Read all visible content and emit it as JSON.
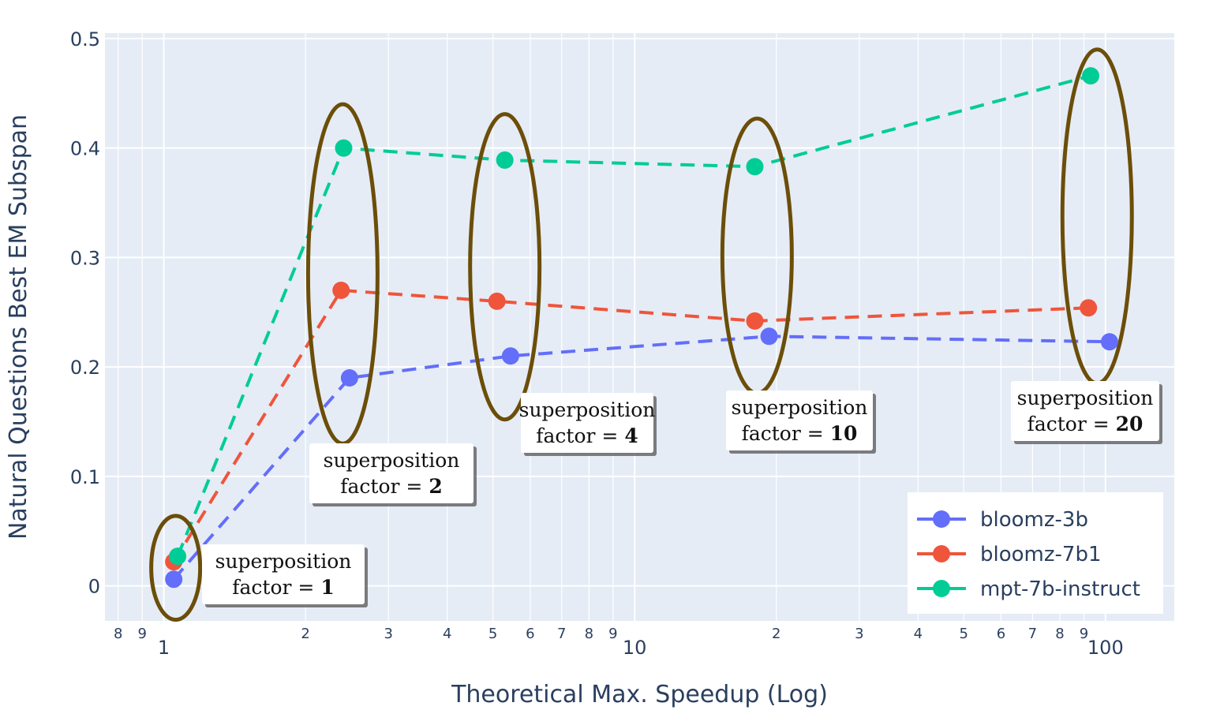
{
  "chart_data": {
    "type": "line",
    "xlabel": "Theoretical Max. Speedup (Log)",
    "ylabel": "Natural Questions Best EM Subspan",
    "x_scale": "log",
    "xlim": [
      0.75,
      140
    ],
    "ylim": [
      -0.032,
      0.505
    ],
    "y_ticks": [
      0,
      0.1,
      0.2,
      0.3,
      0.4,
      0.5
    ],
    "y_tick_labels": [
      "0",
      "0.1",
      "0.2",
      "0.3",
      "0.4",
      "0.5"
    ],
    "x_major_ticks": [
      {
        "value": 1,
        "label": "1"
      },
      {
        "value": 10,
        "label": "10"
      },
      {
        "value": 100,
        "label": "100"
      }
    ],
    "x_minor_ticks": [
      {
        "value": 0.8,
        "label": "8"
      },
      {
        "value": 0.9,
        "label": "9"
      },
      {
        "value": 2,
        "label": "2"
      },
      {
        "value": 3,
        "label": "3"
      },
      {
        "value": 4,
        "label": "4"
      },
      {
        "value": 5,
        "label": "5"
      },
      {
        "value": 6,
        "label": "6"
      },
      {
        "value": 7,
        "label": "7"
      },
      {
        "value": 8,
        "label": "8"
      },
      {
        "value": 9,
        "label": "9"
      },
      {
        "value": 20,
        "label": "2"
      },
      {
        "value": 30,
        "label": "3"
      },
      {
        "value": 40,
        "label": "4"
      },
      {
        "value": 50,
        "label": "5"
      },
      {
        "value": 60,
        "label": "6"
      },
      {
        "value": 70,
        "label": "7"
      },
      {
        "value": 80,
        "label": "8"
      },
      {
        "value": 90,
        "label": "9"
      }
    ],
    "grid": true,
    "legend_position": "bottom-right",
    "series": [
      {
        "name": "bloomz-3b",
        "color": "#636efa",
        "x": [
          1.05,
          2.48,
          5.45,
          19.3,
          102
        ],
        "y": [
          0.006,
          0.19,
          0.21,
          0.228,
          0.223
        ]
      },
      {
        "name": "bloomz-7b1",
        "color": "#ef553b",
        "x": [
          1.05,
          2.38,
          5.1,
          18.0,
          92
        ],
        "y": [
          0.022,
          0.27,
          0.26,
          0.242,
          0.254
        ]
      },
      {
        "name": "mpt-7b-instruct",
        "color": "#00cc96",
        "x": [
          1.07,
          2.41,
          5.3,
          18.0,
          93
        ],
        "y": [
          0.027,
          0.4,
          0.389,
          0.383,
          0.466
        ]
      }
    ],
    "annotations": [
      {
        "line1": "superposition",
        "line2_prefix": "factor = ",
        "factor": "1",
        "ellipse_center": [
          1.06,
          0.017
        ],
        "ellipse_y_span": [
          -0.031,
          0.064
        ]
      },
      {
        "line1": "superposition",
        "line2_prefix": "factor = ",
        "factor": "2",
        "ellipse_center": [
          2.4,
          0.29
        ],
        "ellipse_y_span": [
          0.13,
          0.44
        ]
      },
      {
        "line1": "superposition",
        "line2_prefix": "factor = ",
        "factor": "4",
        "ellipse_center": [
          5.3,
          0.292
        ],
        "ellipse_y_span": [
          0.152,
          0.431
        ]
      },
      {
        "line1": "superposition",
        "line2_prefix": "factor = ",
        "factor": "10",
        "ellipse_center": [
          18.2,
          0.301
        ],
        "ellipse_y_span": [
          0.176,
          0.427
        ]
      },
      {
        "line1": "superposition",
        "line2_prefix": "factor = ",
        "factor": "20",
        "ellipse_center": [
          96,
          0.337
        ],
        "ellipse_y_span": [
          0.185,
          0.49
        ]
      }
    ],
    "ellipse_color": "#6b4e08"
  }
}
